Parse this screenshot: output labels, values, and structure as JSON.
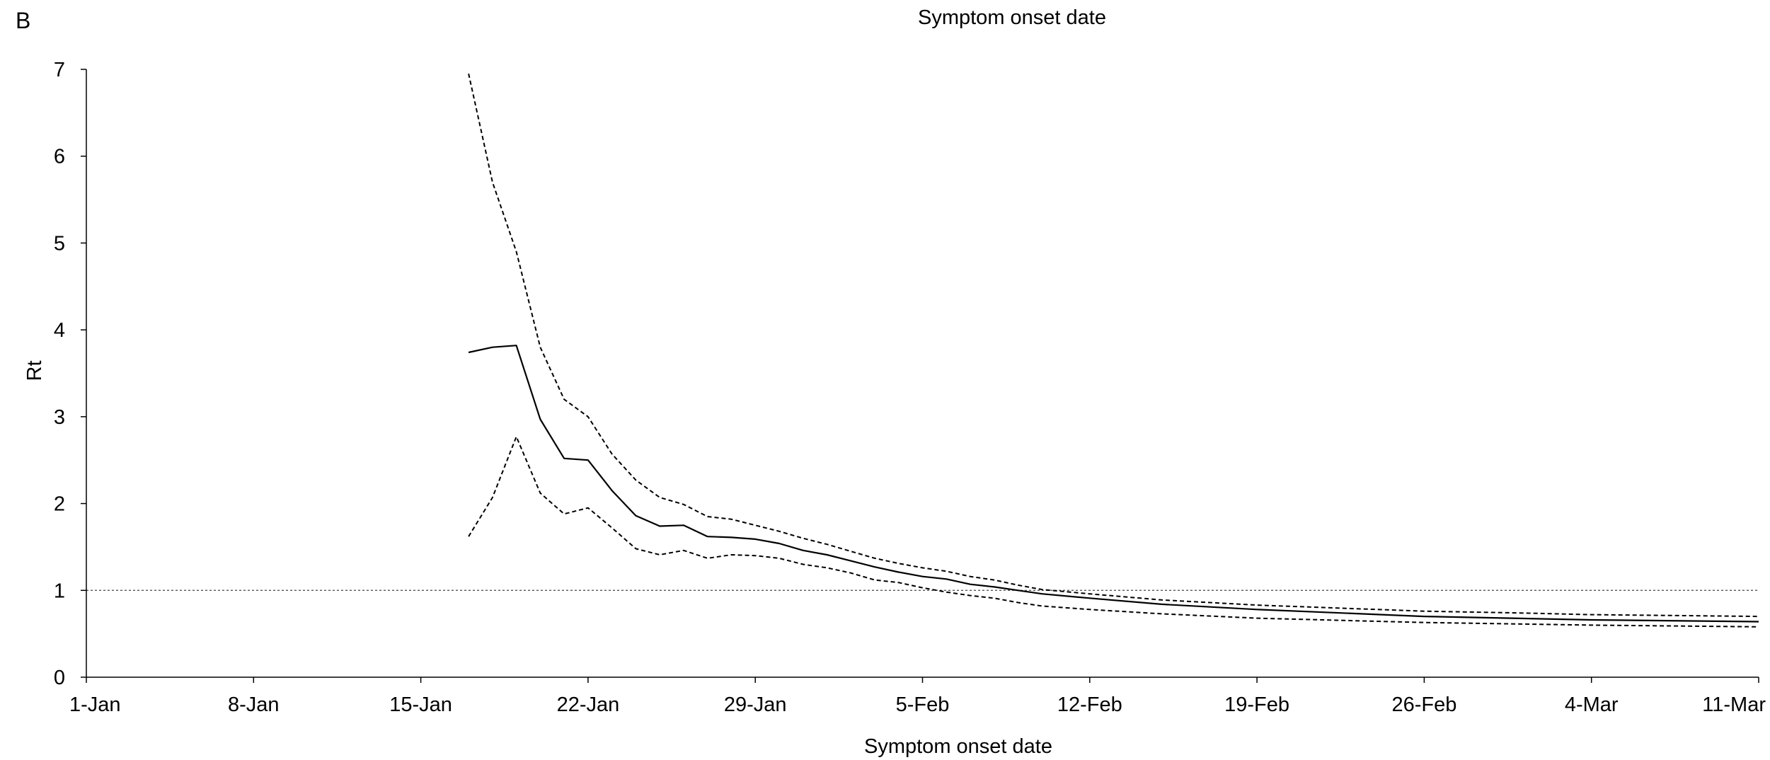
{
  "panel_label": "B",
  "chart_data": {
    "type": "line",
    "title": "Symptom onset date",
    "xlabel": "Symptom onset date",
    "ylabel": "Rt",
    "x_start": "1-Jan",
    "x_tick_labels": [
      "1-Jan",
      "8-Jan",
      "15-Jan",
      "22-Jan",
      "29-Jan",
      "5-Feb",
      "12-Feb",
      "19-Feb",
      "26-Feb",
      "4-Mar",
      "11-Mar"
    ],
    "x_tick_offsets_days": [
      0,
      7,
      14,
      21,
      28,
      35,
      42,
      49,
      56,
      63,
      70
    ],
    "xlim_days": [
      0,
      70
    ],
    "ylim": [
      0,
      7
    ],
    "y_ticks": [
      0,
      1,
      2,
      3,
      4,
      5,
      6,
      7
    ],
    "threshold": 1,
    "legend": "none",
    "grid": false,
    "series": [
      {
        "role": "estimate",
        "style": "solid",
        "x_days": [
          16,
          17,
          18,
          19,
          20,
          21,
          22,
          23,
          24,
          25,
          26,
          27,
          28,
          29,
          30,
          31,
          32,
          33,
          34,
          35,
          36,
          37,
          38,
          39,
          40,
          42,
          45,
          49,
          56,
          63,
          70
        ],
        "values": [
          3.74,
          3.8,
          3.82,
          2.97,
          2.52,
          2.5,
          2.15,
          1.86,
          1.74,
          1.75,
          1.62,
          1.61,
          1.59,
          1.54,
          1.46,
          1.41,
          1.34,
          1.27,
          1.21,
          1.16,
          1.13,
          1.07,
          1.04,
          1.0,
          0.96,
          0.91,
          0.84,
          0.78,
          0.7,
          0.66,
          0.64
        ]
      },
      {
        "role": "upper bound",
        "style": "dashed",
        "x_days": [
          16,
          17,
          18,
          19,
          20,
          21,
          22,
          23,
          24,
          25,
          26,
          27,
          28,
          29,
          30,
          31,
          32,
          33,
          34,
          35,
          36,
          37,
          38,
          39,
          40,
          42,
          45,
          49,
          56,
          60,
          63,
          70
        ],
        "values": [
          6.95,
          5.7,
          4.9,
          3.8,
          3.2,
          3.0,
          2.57,
          2.27,
          2.07,
          1.99,
          1.85,
          1.82,
          1.75,
          1.68,
          1.6,
          1.53,
          1.45,
          1.37,
          1.31,
          1.26,
          1.22,
          1.16,
          1.12,
          1.06,
          1.01,
          0.96,
          0.89,
          0.83,
          0.76,
          0.74,
          0.72,
          0.7
        ]
      },
      {
        "role": "lower bound",
        "style": "dashed",
        "x_days": [
          16,
          17,
          18,
          19,
          20,
          21,
          22,
          23,
          24,
          25,
          26,
          27,
          28,
          29,
          30,
          31,
          32,
          33,
          34,
          35,
          36,
          37,
          38,
          39,
          40,
          42,
          45,
          49,
          56,
          63,
          70
        ],
        "values": [
          1.62,
          2.07,
          2.77,
          2.12,
          1.88,
          1.95,
          1.72,
          1.48,
          1.41,
          1.46,
          1.37,
          1.41,
          1.4,
          1.37,
          1.3,
          1.26,
          1.2,
          1.12,
          1.09,
          1.03,
          0.98,
          0.94,
          0.91,
          0.86,
          0.82,
          0.78,
          0.73,
          0.68,
          0.63,
          0.6,
          0.58
        ]
      }
    ]
  }
}
